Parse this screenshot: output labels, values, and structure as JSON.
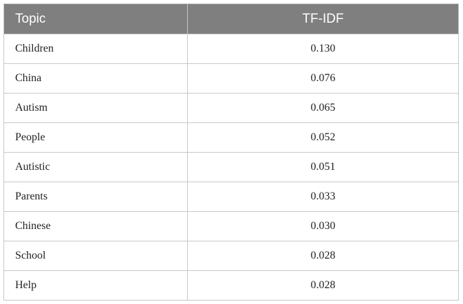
{
  "table": {
    "header": [
      "Topic",
      "TF-IDF"
    ],
    "rows": [
      [
        "Children",
        "0.130"
      ],
      [
        "China",
        "0.076"
      ],
      [
        "Autism",
        "0.065"
      ],
      [
        "People",
        "0.052"
      ],
      [
        "Autistic",
        "0.051"
      ],
      [
        "Parents",
        "0.033"
      ],
      [
        "Chinese",
        "0.030"
      ],
      [
        "School",
        "0.028"
      ],
      [
        "Help",
        "0.028"
      ]
    ]
  }
}
